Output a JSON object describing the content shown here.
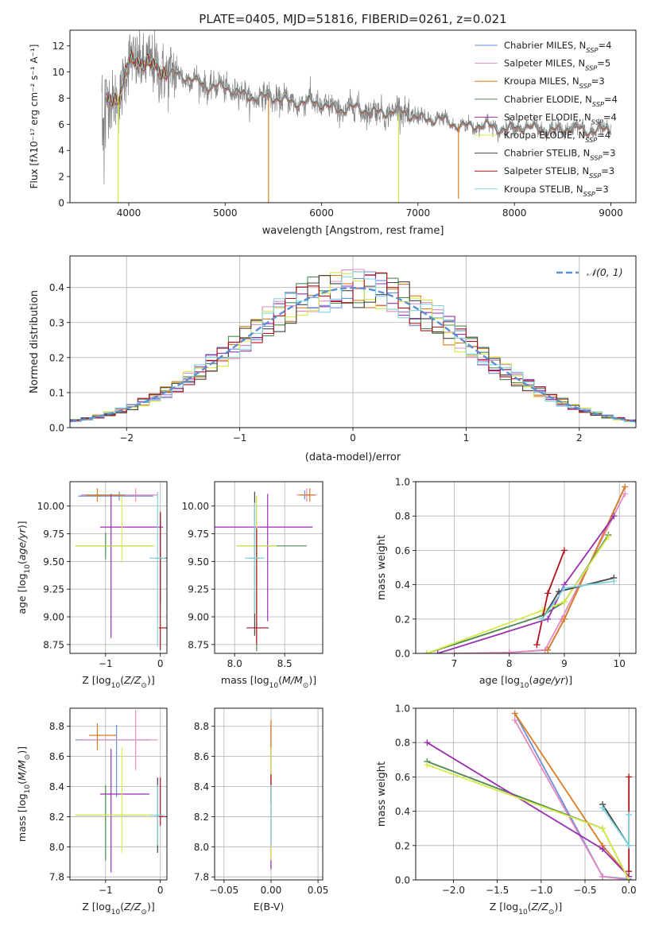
{
  "title": "PLATE=0405, MJD=51816, FIBERID=0261, z=0.021",
  "series": [
    {
      "name": "Chabrier MILES, N_SSP=4",
      "label_main": "Chabrier MILES, N",
      "label_sub": "SSP",
      "label_tail": "=4",
      "color": "#6a8ed8"
    },
    {
      "name": "Salpeter MILES, N_SSP=5",
      "label_main": "Salpeter MILES, N",
      "label_sub": "SSP",
      "label_tail": "=5",
      "color": "#e58ac0"
    },
    {
      "name": "Kroupa MILES, N_SSP=3",
      "label_main": "Kroupa MILES, N",
      "label_sub": "SSP",
      "label_tail": "=3",
      "color": "#d97c23"
    },
    {
      "name": "Chabrier ELODIE, N_SSP=4",
      "label_main": "Chabrier ELODIE, N",
      "label_sub": "SSP",
      "label_tail": "=4",
      "color": "#4f8a4f"
    },
    {
      "name": "Salpeter ELODIE, N_SSP=4",
      "label_main": "Salpeter ELODIE, N",
      "label_sub": "SSP",
      "label_tail": "=4",
      "color": "#9a2fb0"
    },
    {
      "name": "Kroupa ELODIE, N_SSP=4",
      "label_main": "Kroupa ELODIE, N",
      "label_sub": "SSP",
      "label_tail": "=4",
      "color": "#d6ea4a"
    },
    {
      "name": "Chabrier STELIB, N_SSP=3",
      "label_main": "Chabrier STELIB, N",
      "label_sub": "SSP",
      "label_tail": "=3",
      "color": "#454545"
    },
    {
      "name": "Salpeter STELIB, N_SSP=3",
      "label_main": "Salpeter STELIB, N",
      "label_sub": "SSP",
      "label_tail": "=3",
      "color": "#b3121b"
    },
    {
      "name": "Kroupa STELIB, N_SSP=3",
      "label_main": "Kroupa STELIB, N",
      "label_sub": "SSP",
      "label_tail": "=3",
      "color": "#7fd6e0"
    }
  ],
  "chart_data": [
    {
      "type": "line",
      "title": "PLATE=0405, MJD=51816, FIBERID=0261, z=0.021",
      "xlabel": "wavelength [Angstrom, rest frame]",
      "ylabel": "Flux [fλ10⁻¹⁷ erg cm⁻² s⁻¹ A⁻¹]",
      "xlim": [
        3390,
        9260
      ],
      "ylim": [
        0,
        13.2
      ],
      "xticks": [
        4000,
        5000,
        6000,
        7000,
        8000,
        9000
      ],
      "yticks": [
        0,
        2,
        4,
        6,
        8,
        10,
        12
      ],
      "data_color": "#808080",
      "continuum": [
        [
          3750,
          7.5
        ],
        [
          3900,
          8.2
        ],
        [
          4000,
          10.8
        ],
        [
          4200,
          10.6
        ],
        [
          4400,
          10.0
        ],
        [
          4600,
          9.5
        ],
        [
          4800,
          9.1
        ],
        [
          5000,
          8.7
        ],
        [
          5200,
          8.3
        ],
        [
          5400,
          8.0
        ],
        [
          5600,
          7.9
        ],
        [
          5800,
          7.7
        ],
        [
          6000,
          7.5
        ],
        [
          6200,
          7.2
        ],
        [
          6400,
          7.1
        ],
        [
          6600,
          7.0
        ],
        [
          6800,
          6.9
        ],
        [
          7000,
          6.6
        ],
        [
          7200,
          6.3
        ],
        [
          7400,
          6.0
        ],
        [
          7600,
          5.9
        ],
        [
          7800,
          5.7
        ],
        [
          8000,
          5.8
        ],
        [
          8200,
          5.6
        ],
        [
          8400,
          5.6
        ],
        [
          8600,
          5.6
        ],
        [
          8800,
          5.6
        ],
        [
          9000,
          5.6
        ]
      ],
      "model_dropouts": [
        [
          3890,
          0.0,
          "#d6ea4a"
        ],
        [
          5450,
          0.0,
          "#d97c23"
        ],
        [
          6800,
          0.0,
          "#d6ea4a"
        ],
        [
          7420,
          0.3,
          "#d97c23"
        ]
      ],
      "legend": "upper right"
    },
    {
      "type": "step",
      "xlabel": "(data-model)/error",
      "ylabel": "Normed distribution",
      "xlim": [
        -2.5,
        2.5
      ],
      "ylim": [
        0,
        0.49
      ],
      "xticks": [
        -2,
        -1,
        0,
        1,
        2
      ],
      "yticks": [
        0.0,
        0.1,
        0.2,
        0.3,
        0.4
      ],
      "bin_width": 0.1,
      "reference": {
        "name": "𝒩(0, 1)",
        "color": "#5b8fd4"
      },
      "legend": "upper right"
    },
    {
      "type": "errorbar",
      "xlabel": "Z [log10(Z/Z⊙)]",
      "ylabel": "age [log10(age/yr)]",
      "xlim": [
        -1.65,
        0.12
      ],
      "ylim": [
        8.67,
        10.22
      ],
      "xticks": [
        -1,
        0
      ],
      "yticks": [
        8.75,
        9.0,
        9.25,
        9.5,
        9.75,
        10.0
      ],
      "points": [
        {
          "series": 0,
          "x": -0.75,
          "y": 10.09,
          "xerr": [
            0.75,
            0.62
          ],
          "yerr": [
            0.04,
            0.04
          ]
        },
        {
          "series": 1,
          "x": -0.45,
          "y": 10.1,
          "xerr": [
            1.0,
            0.4
          ],
          "yerr": [
            0.06,
            0.06
          ]
        },
        {
          "series": 2,
          "x": -1.15,
          "y": 10.1,
          "xerr": [
            0.2,
            0.5
          ],
          "yerr": [
            0.06,
            0.06
          ]
        },
        {
          "series": 3,
          "x": -1.0,
          "y": 9.64,
          "xerr": [
            0.55,
            0.85
          ],
          "yerr": [
            0.12,
            0.12
          ]
        },
        {
          "series": 4,
          "x": -0.9,
          "y": 9.81,
          "xerr": [
            0.2,
            0.95
          ],
          "yerr": [
            1.0,
            0.3
          ]
        },
        {
          "series": 5,
          "x": -0.7,
          "y": 9.64,
          "xerr": [
            0.85,
            0.6
          ],
          "yerr": [
            0.15,
            0.45
          ]
        },
        {
          "series": 6,
          "x": 0.0,
          "y": 9.53,
          "xerr": [
            0.1,
            0.12
          ],
          "yerr": [
            0.4,
            0.4
          ]
        },
        {
          "series": 7,
          "x": 0.0,
          "y": 8.9,
          "xerr": [
            0.03,
            0.12
          ],
          "yerr": [
            0.2,
            1.05
          ]
        },
        {
          "series": 8,
          "x": -0.05,
          "y": 9.53,
          "xerr": [
            0.15,
            0.15
          ],
          "yerr": [
            0.8,
            0.6
          ]
        }
      ]
    },
    {
      "type": "errorbar",
      "xlabel": "mass [log10(M/M⊙)]",
      "ylabel": "",
      "xlim": [
        7.8,
        8.88
      ],
      "ylim": [
        8.67,
        10.22
      ],
      "xticks": [
        8.0,
        8.5
      ],
      "yticks": [
        8.75,
        9.0,
        9.25,
        9.5,
        9.75,
        10.0
      ],
      "points": [
        {
          "series": 0,
          "x": 8.7,
          "y": 10.1,
          "xerr": [
            0.05,
            0.05
          ],
          "yerr": [
            0.04,
            0.04
          ]
        },
        {
          "series": 1,
          "x": 8.72,
          "y": 10.1,
          "xerr": [
            0.1,
            0.1
          ],
          "yerr": [
            0.06,
            0.06
          ]
        },
        {
          "series": 2,
          "x": 8.75,
          "y": 10.1,
          "xerr": [
            0.1,
            0.05
          ],
          "yerr": [
            0.06,
            0.06
          ]
        },
        {
          "series": 3,
          "x": 8.22,
          "y": 9.64,
          "xerr": [
            0.2,
            0.5
          ],
          "yerr": [
            0.95,
            0.45
          ]
        },
        {
          "series": 4,
          "x": 8.33,
          "y": 9.81,
          "xerr": [
            0.55,
            0.45
          ],
          "yerr": [
            0.85,
            0.3
          ]
        },
        {
          "series": 5,
          "x": 8.22,
          "y": 9.64,
          "xerr": [
            0.2,
            0.2
          ],
          "yerr": [
            0.7,
            0.45
          ]
        },
        {
          "series": 6,
          "x": 8.2,
          "y": 9.53,
          "xerr": [
            0.05,
            0.05
          ],
          "yerr": [
            0.7,
            0.6
          ]
        },
        {
          "series": 7,
          "x": 8.22,
          "y": 8.9,
          "xerr": [
            0.1,
            0.12
          ],
          "yerr": [
            0.15,
            0.9
          ]
        },
        {
          "series": 8,
          "x": 8.2,
          "y": 9.53,
          "xerr": [
            0.1,
            0.1
          ],
          "yerr": [
            0.5,
            0.5
          ]
        }
      ]
    },
    {
      "type": "line",
      "xlabel": "age [log10(age/yr)]",
      "ylabel": "mass weight",
      "xlim": [
        6.3,
        10.3
      ],
      "ylim": [
        0,
        1.0
      ],
      "xticks": [
        7,
        8,
        9,
        10
      ],
      "yticks": [
        0.0,
        0.2,
        0.4,
        0.6,
        0.8,
        1.0
      ],
      "lines": [
        {
          "series": 0,
          "points": [
            [
              8.0,
              0.005
            ],
            [
              8.7,
              0.02
            ],
            [
              9.0,
              0.2
            ],
            [
              10.1,
              0.97
            ]
          ]
        },
        {
          "series": 1,
          "points": [
            [
              7.0,
              0.0
            ],
            [
              8.0,
              0.005
            ],
            [
              8.65,
              0.02
            ],
            [
              8.95,
              0.2
            ],
            [
              10.1,
              0.93
            ]
          ]
        },
        {
          "series": 2,
          "points": [
            [
              8.7,
              0.02
            ],
            [
              9.0,
              0.2
            ],
            [
              10.1,
              0.97
            ]
          ]
        },
        {
          "series": 3,
          "points": [
            [
              6.5,
              0.0
            ],
            [
              8.6,
              0.22
            ],
            [
              9.0,
              0.3
            ],
            [
              9.8,
              0.69
            ]
          ]
        },
        {
          "series": 4,
          "points": [
            [
              6.7,
              0.0
            ],
            [
              8.7,
              0.2
            ],
            [
              9.0,
              0.4
            ],
            [
              9.9,
              0.8
            ]
          ]
        },
        {
          "series": 5,
          "points": [
            [
              6.5,
              0.0
            ],
            [
              8.6,
              0.25
            ],
            [
              9.0,
              0.3
            ],
            [
              9.8,
              0.68
            ]
          ]
        },
        {
          "series": 6,
          "points": [
            [
              8.6,
              0.2
            ],
            [
              8.9,
              0.36
            ],
            [
              9.9,
              0.44
            ]
          ]
        },
        {
          "series": 7,
          "points": [
            [
              8.5,
              0.05
            ],
            [
              8.7,
              0.35
            ],
            [
              9.0,
              0.6
            ]
          ]
        },
        {
          "series": 8,
          "points": [
            [
              8.6,
              0.2
            ],
            [
              9.0,
              0.38
            ],
            [
              9.9,
              0.42
            ]
          ]
        }
      ]
    },
    {
      "type": "errorbar",
      "xlabel": "Z [log10(Z/Z⊙)]",
      "ylabel": "mass [log10(M/M⊙)]",
      "xlim": [
        -1.65,
        0.12
      ],
      "ylim": [
        7.78,
        8.92
      ],
      "xticks": [
        -1,
        0
      ],
      "yticks": [
        7.8,
        8.0,
        8.2,
        8.4,
        8.6,
        8.8
      ],
      "points": [
        {
          "series": 0,
          "x": -0.8,
          "y": 8.71,
          "xerr": [
            0.75,
            0.62
          ],
          "yerr": [
            0.38,
            0.1
          ]
        },
        {
          "series": 1,
          "x": -0.45,
          "y": 8.71,
          "xerr": [
            1.0,
            0.4
          ],
          "yerr": [
            0.2,
            0.2
          ]
        },
        {
          "series": 2,
          "x": -1.15,
          "y": 8.74,
          "xerr": [
            0.15,
            0.35
          ],
          "yerr": [
            0.1,
            0.08
          ]
        },
        {
          "series": 3,
          "x": -1.0,
          "y": 8.21,
          "xerr": [
            0.55,
            0.85
          ],
          "yerr": [
            0.3,
            0.2
          ]
        },
        {
          "series": 4,
          "x": -0.9,
          "y": 8.35,
          "xerr": [
            0.2,
            0.7
          ],
          "yerr": [
            0.52,
            0.3
          ]
        },
        {
          "series": 5,
          "x": -0.7,
          "y": 8.21,
          "xerr": [
            0.85,
            0.6
          ],
          "yerr": [
            0.25,
            0.45
          ]
        },
        {
          "series": 6,
          "x": -0.05,
          "y": 8.21,
          "xerr": [
            0.05,
            0.1
          ],
          "yerr": [
            0.25,
            0.25
          ]
        },
        {
          "series": 7,
          "x": 0.0,
          "y": 8.2,
          "xerr": [
            0.03,
            0.12
          ],
          "yerr": [
            0.06,
            0.26
          ]
        },
        {
          "series": 8,
          "x": -0.05,
          "y": 8.21,
          "xerr": [
            0.12,
            0.12
          ],
          "yerr": [
            0.2,
            0.2
          ]
        }
      ]
    },
    {
      "type": "errorbar",
      "xlabel": "E(B-V)",
      "ylabel": "",
      "xlim": [
        -0.06,
        0.055
      ],
      "ylim": [
        7.78,
        8.92
      ],
      "xticks": [
        -0.05,
        0.0,
        0.05
      ],
      "yticks": [
        7.8,
        8.0,
        8.2,
        8.4,
        8.6,
        8.8
      ],
      "points": [
        {
          "series": 0,
          "x": 0.0,
          "y": 8.71,
          "xerr": [
            0,
            0
          ],
          "yerr": [
            0.3,
            0.1
          ]
        },
        {
          "series": 1,
          "x": 0.0,
          "y": 8.71,
          "xerr": [
            0,
            0
          ],
          "yerr": [
            0.85,
            0.13
          ]
        },
        {
          "series": 2,
          "x": 0.0,
          "y": 8.74,
          "xerr": [
            0,
            0
          ],
          "yerr": [
            0.1,
            0.1
          ]
        },
        {
          "series": 4,
          "x": 0.0,
          "y": 8.35,
          "xerr": [
            0,
            0
          ],
          "yerr": [
            0.5,
            0.3
          ]
        },
        {
          "series": 5,
          "x": 0.0,
          "y": 8.21,
          "xerr": [
            0,
            0
          ],
          "yerr": [
            0.3,
            0.45
          ]
        },
        {
          "series": 7,
          "x": 0.0,
          "y": 8.38,
          "xerr": [
            0,
            0
          ],
          "yerr": [
            0.1,
            0.1
          ]
        },
        {
          "series": 8,
          "x": 0.0,
          "y": 8.21,
          "xerr": [
            0,
            0
          ],
          "yerr": [
            0.2,
            0.2
          ]
        }
      ]
    },
    {
      "type": "line",
      "xlabel": "Z [log10(Z/Z⊙)]",
      "ylabel": "mass weight",
      "xlim": [
        -2.43,
        0.08
      ],
      "ylim": [
        0,
        1.0
      ],
      "xticks": [
        -2.0,
        -1.5,
        -1.0,
        -0.5,
        0.0
      ],
      "yticks": [
        0.0,
        0.2,
        0.4,
        0.6,
        0.8,
        1.0
      ],
      "lines": [
        {
          "series": 0,
          "points": [
            [
              -1.3,
              0.97
            ],
            [
              -0.3,
              0.02
            ],
            [
              0.0,
              0.005
            ]
          ]
        },
        {
          "series": 1,
          "points": [
            [
              -1.3,
              0.93
            ],
            [
              -0.3,
              0.02
            ],
            [
              0.0,
              0.0
            ]
          ]
        },
        {
          "series": 2,
          "points": [
            [
              -1.3,
              0.97
            ],
            [
              -0.3,
              0.2
            ],
            [
              0.0,
              0.02
            ]
          ]
        },
        {
          "series": 3,
          "points": [
            [
              -2.3,
              0.69
            ],
            [
              -0.3,
              0.3
            ],
            [
              0.0,
              0.0
            ]
          ]
        },
        {
          "series": 4,
          "points": [
            [
              -2.3,
              0.8
            ],
            [
              -0.3,
              0.18
            ],
            [
              0.0,
              0.02
            ]
          ]
        },
        {
          "series": 5,
          "points": [
            [
              -2.3,
              0.67
            ],
            [
              -0.3,
              0.3
            ],
            [
              0.0,
              0.0
            ]
          ]
        },
        {
          "series": 6,
          "points": [
            [
              -0.3,
              0.44
            ],
            [
              0.0,
              0.2
            ]
          ]
        },
        {
          "series": 7,
          "points": [
            [
              0.0,
              0.6
            ],
            [
              0.0,
              0.05
            ]
          ]
        },
        {
          "series": 8,
          "points": [
            [
              -0.3,
              0.42
            ],
            [
              0.0,
              0.2
            ],
            [
              0.0,
              0.38
            ]
          ]
        }
      ]
    }
  ]
}
